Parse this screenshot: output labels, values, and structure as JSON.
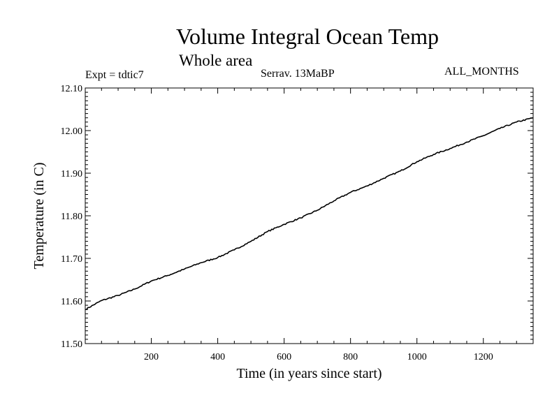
{
  "chart_data": {
    "type": "line",
    "title": "Volume Integral Ocean Temp",
    "subtitle": "Whole area",
    "annotations": {
      "experiment": "Expt = tdtic7",
      "period": "Serrav.   13MaBP",
      "months": "ALL_MONTHS"
    },
    "xlabel": "Time (in years since start)",
    "ylabel": "Temperature (in C)",
    "xlim": [
      1,
      1350
    ],
    "ylim": [
      11.5,
      12.1
    ],
    "x_ticks": [
      200,
      400,
      600,
      800,
      1000,
      1200
    ],
    "y_ticks": [
      "11.50",
      "11.60",
      "11.70",
      "11.80",
      "11.90",
      "12.00",
      "12.10"
    ],
    "grid": false,
    "series": [
      {
        "name": "Volume integral ocean temperature",
        "x": [
          1,
          50,
          100,
          150,
          200,
          250,
          300,
          350,
          400,
          450,
          500,
          550,
          600,
          650,
          700,
          750,
          800,
          850,
          900,
          950,
          1000,
          1050,
          1100,
          1150,
          1200,
          1250,
          1300,
          1350
        ],
        "y": [
          11.58,
          11.601,
          11.613,
          11.628,
          11.647,
          11.66,
          11.675,
          11.69,
          11.702,
          11.72,
          11.74,
          11.763,
          11.78,
          11.795,
          11.813,
          11.835,
          11.855,
          11.87,
          11.888,
          11.905,
          11.927,
          11.944,
          11.958,
          11.973,
          11.988,
          12.005,
          12.02,
          12.03
        ]
      }
    ]
  }
}
